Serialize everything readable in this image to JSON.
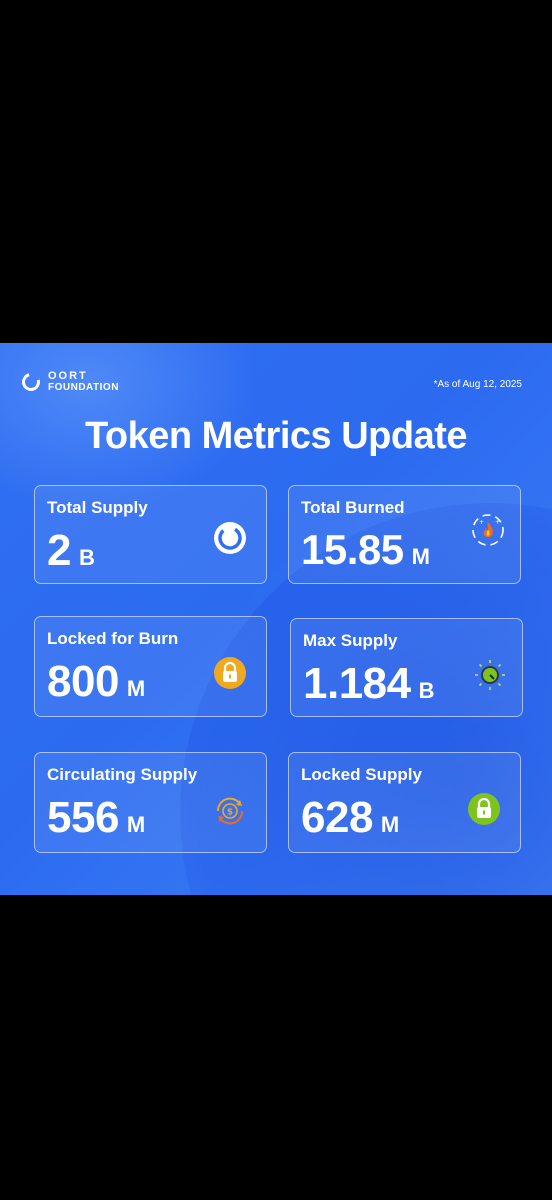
{
  "brand": {
    "line1": "OORT",
    "line2": "FOUNDATION"
  },
  "as_of": "*As of Aug 12, 2025",
  "title": "Token Metrics Update",
  "colors": {
    "background": "#2f6ff2",
    "card_border": "#ffffff",
    "text": "#ffffff",
    "lock_gold": "#f0a81e",
    "lock_green": "#7ec41e"
  },
  "metrics": [
    {
      "label": "Total Supply",
      "value": "2",
      "unit": "B",
      "icon": "oort-ring-icon"
    },
    {
      "label": "Total Burned",
      "value": "15.85",
      "unit": "M",
      "icon": "fire-burn-icon"
    },
    {
      "label": "Locked for Burn",
      "value": "800",
      "unit": "M",
      "icon": "gold-lock-icon"
    },
    {
      "label": "Max Supply",
      "value": "1.184",
      "unit": "B",
      "icon": "gauge-icon"
    },
    {
      "label": "Circulating Supply",
      "value": "556",
      "unit": "M",
      "icon": "circulating-dollar-icon"
    },
    {
      "label": "Locked Supply",
      "value": "628",
      "unit": "M",
      "icon": "green-lock-icon"
    }
  ]
}
